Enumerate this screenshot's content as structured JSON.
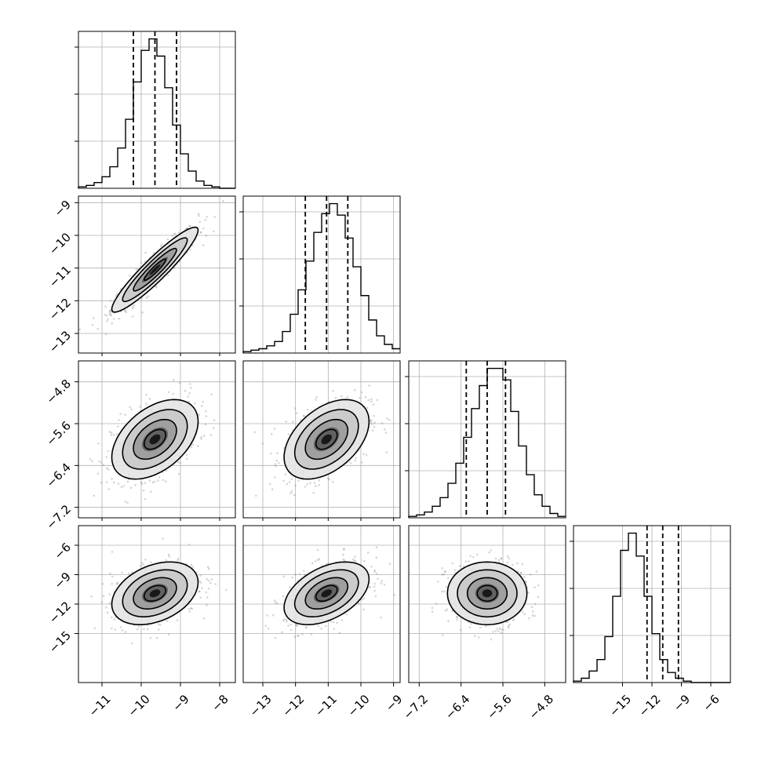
{
  "chart_data": {
    "type": "corner",
    "description_note": "",
    "grid": true,
    "params": [
      {
        "range": [
          -11.6,
          -7.6
        ],
        "ticks": [
          -11,
          -10,
          -9,
          -8
        ],
        "tick_labels": [
          "−11",
          "−10",
          "−9",
          "−8"
        ],
        "median": -9.65,
        "q_low": -10.2,
        "q_high": -9.1
      },
      {
        "range": [
          -13.6,
          -8.8
        ],
        "ticks": [
          -13,
          -12,
          -11,
          -10,
          -9
        ],
        "tick_labels": [
          "−13",
          "−12",
          "−11",
          "−10",
          "−9"
        ],
        "median": -11.05,
        "q_low": -11.7,
        "q_high": -10.4
      },
      {
        "range": [
          -7.4,
          -4.4
        ],
        "ticks": [
          -7.2,
          -6.4,
          -5.6,
          -4.8
        ],
        "tick_labels": [
          "−7.2",
          "−6.4",
          "−5.6",
          "−4.8"
        ],
        "median": -5.9,
        "q_low": -6.3,
        "q_high": -5.55
      },
      {
        "range": [
          -20,
          -4
        ],
        "ticks": [
          -15,
          -12,
          -9,
          -6
        ],
        "tick_labels": [
          "−15",
          "−12",
          "−9",
          "−6"
        ],
        "median": -10.9,
        "q_low": -12.5,
        "q_high": -9.3
      }
    ],
    "histograms": [
      {
        "param": 0,
        "bin_start": -11.6,
        "bin_width": 0.2,
        "counts": [
          1,
          2,
          4,
          8,
          15,
          28,
          48,
          74,
          96,
          104,
          92,
          70,
          44,
          24,
          12,
          5,
          2,
          1,
          0,
          0
        ]
      },
      {
        "param": 1,
        "bin_start": -13.6,
        "bin_width": 0.24,
        "counts": [
          1,
          2,
          3,
          5,
          8,
          15,
          27,
          44,
          64,
          84,
          97,
          104,
          96,
          80,
          60,
          40,
          23,
          12,
          6,
          3
        ]
      },
      {
        "param": 2,
        "bin_start": -7.4,
        "bin_width": 0.15,
        "counts": [
          1,
          2,
          4,
          8,
          14,
          24,
          38,
          56,
          76,
          92,
          104,
          104,
          96,
          74,
          50,
          30,
          16,
          8,
          3,
          1
        ]
      },
      {
        "param": 3,
        "bin_start": -20,
        "bin_width": 0.8,
        "counts": [
          1,
          3,
          8,
          16,
          32,
          60,
          92,
          104,
          88,
          60,
          34,
          16,
          7,
          3,
          1,
          0,
          0,
          0,
          0,
          0
        ]
      }
    ],
    "pairs": [
      {
        "x": 0,
        "y": 1,
        "center": [
          -9.65,
          -11.05
        ],
        "sigma": [
          0.55,
          0.65
        ],
        "correlation": 0.93
      },
      {
        "x": 0,
        "y": 2,
        "center": [
          -9.65,
          -5.9
        ],
        "sigma": [
          0.55,
          0.38
        ],
        "correlation": 0.45
      },
      {
        "x": 1,
        "y": 2,
        "center": [
          -11.05,
          -5.9
        ],
        "sigma": [
          0.65,
          0.38
        ],
        "correlation": 0.45
      },
      {
        "x": 0,
        "y": 3,
        "center": [
          -9.65,
          -10.9
        ],
        "sigma": [
          0.55,
          1.6
        ],
        "correlation": 0.35
      },
      {
        "x": 1,
        "y": 3,
        "center": [
          -11.05,
          -10.9
        ],
        "sigma": [
          0.65,
          1.6
        ],
        "correlation": 0.45
      },
      {
        "x": 2,
        "y": 3,
        "center": [
          -5.9,
          -10.9
        ],
        "sigma": [
          0.38,
          1.6
        ],
        "correlation": 0.0
      }
    ],
    "contour_levels_sigma": [
      0.5,
      1.0,
      1.5,
      2.0
    ]
  }
}
